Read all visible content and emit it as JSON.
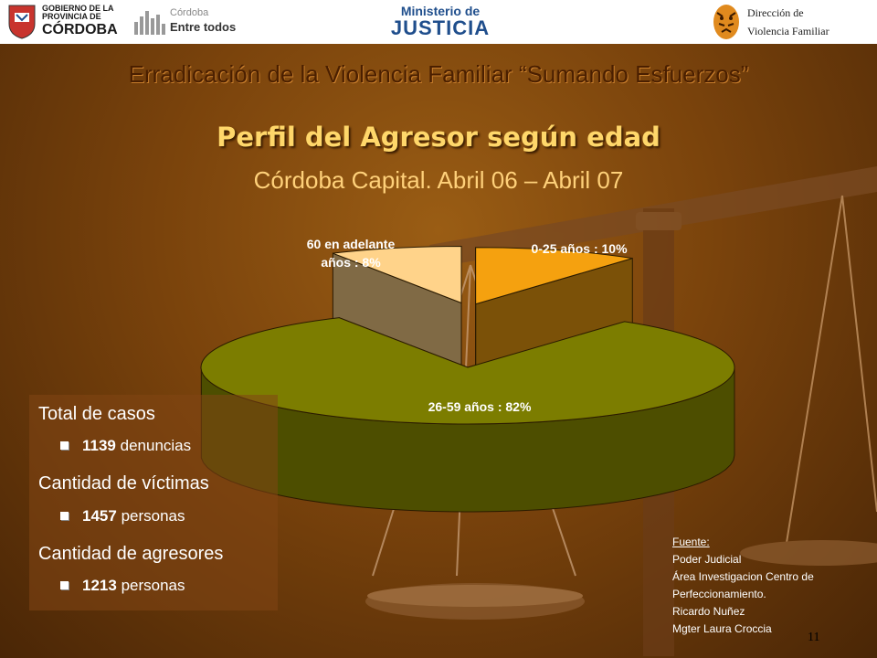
{
  "header": {
    "logo_cordoba": {
      "line1": "GOBIERNO DE LA",
      "line2": "PROVINCIA DE",
      "line3": "CÓRDOBA"
    },
    "logo_entretodos": {
      "line1": "Córdoba",
      "line2": "Entre todos"
    },
    "logo_justicia": {
      "line1": "Ministerio de",
      "line2": "JUSTICIA"
    },
    "logo_direccion": {
      "line1": "Dirección de",
      "line2": "Violencia Familiar"
    }
  },
  "slide_title": "Erradicación de la Violencia Familiar “Sumando Esfuerzos”",
  "chart_data": {
    "type": "pie",
    "title": "Perfil del Agresor según edad",
    "subtitle": "Córdoba Capital.  Abril 06 – Abril 07",
    "categories": [
      "0-25 años",
      "26-59 años",
      "60 en adelante años"
    ],
    "values": [
      10,
      82,
      8
    ],
    "unit": "%",
    "data_labels": [
      "0-25 años : 10%",
      "26-59 años : 82%",
      "60 en adelante años : 8%"
    ],
    "label_parts": {
      "slice3_line1": "60 en adelante",
      "slice3_line2": "años : 8%"
    },
    "colors": [
      "#f5a10f",
      "#7c7d00",
      "#ffd38a"
    ],
    "exploded": true,
    "three_d": true
  },
  "stats": {
    "total_label": "Total de casos",
    "total_value": "1139",
    "total_unit": "denuncias",
    "victims_label": "Cantidad de víctimas",
    "victims_value": "1457",
    "victims_unit": "personas",
    "aggressors_label": "Cantidad de agresores",
    "aggressors_value": "1213",
    "aggressors_unit": "personas"
  },
  "source": {
    "label": "Fuente:",
    "lines": [
      "Poder Judicial",
      "Área Investigacion Centro de",
      "Perfeccionamiento.",
      "Ricardo Nuñez",
      "Mgter Laura Croccia"
    ]
  },
  "page_number": "11"
}
